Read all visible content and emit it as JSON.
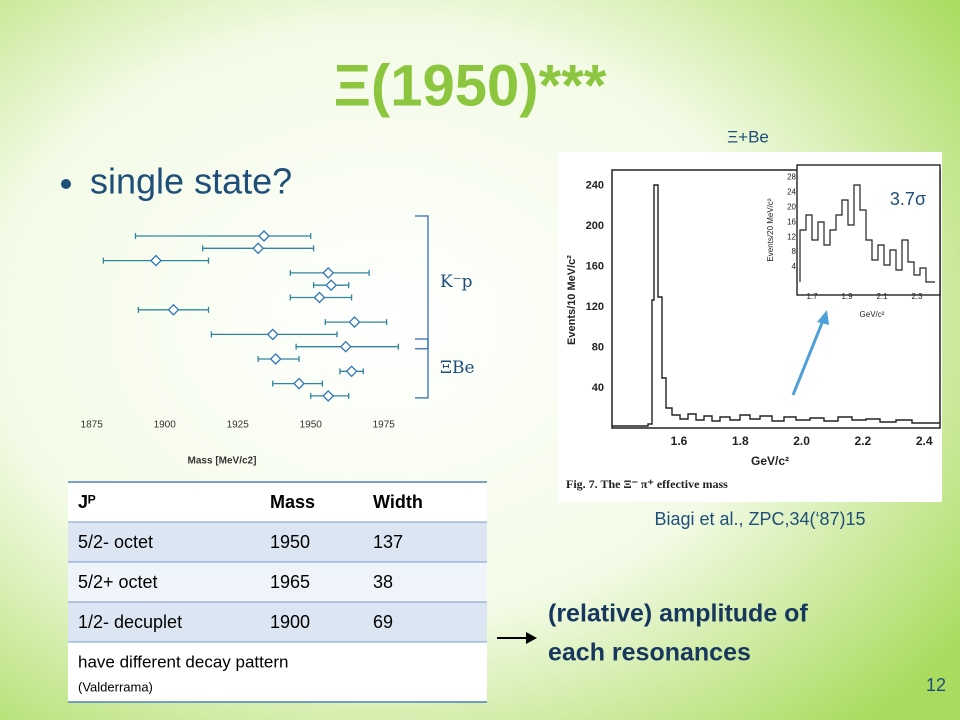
{
  "title": "Ξ(1950)***",
  "bullet": "single state?",
  "chart_data": {
    "type": "errorbar",
    "x_label": "Mass [MeV/c2]",
    "xlim": [
      1871,
      1984
    ],
    "xticks": [
      1875,
      1900,
      1925,
      1950,
      1975
    ],
    "color": "#31859c",
    "series": [
      {
        "name": "K⁻p",
        "points": [
          {
            "value": 1934,
            "low": 1890,
            "high": 1950
          },
          {
            "value": 1932,
            "low": 1913,
            "high": 1951
          },
          {
            "value": 1897,
            "low": 1879,
            "high": 1915
          },
          {
            "value": 1956,
            "low": 1943,
            "high": 1970
          },
          {
            "value": 1957,
            "low": 1951,
            "high": 1963
          },
          {
            "value": 1953,
            "low": 1943,
            "high": 1964
          },
          {
            "value": 1903,
            "low": 1891,
            "high": 1915
          },
          {
            "value": 1965,
            "low": 1955,
            "high": 1976
          },
          {
            "value": 1937,
            "low": 1916,
            "high": 1959
          },
          {
            "value": 1962,
            "low": 1945,
            "high": 1980
          }
        ]
      },
      {
        "name": "ΞBe",
        "points": [
          {
            "value": 1938,
            "low": 1932,
            "high": 1946
          },
          {
            "value": 1964,
            "low": 1960,
            "high": 1968
          },
          {
            "value": 1946,
            "low": 1937,
            "high": 1954
          },
          {
            "value": 1956,
            "low": 1950,
            "high": 1963
          }
        ]
      }
    ]
  },
  "table": {
    "header": [
      "Jᴾ",
      "Mass",
      "Width"
    ],
    "rows": [
      [
        "5/2- octet",
        "1950",
        "137"
      ],
      [
        "5/2+ octet",
        "1965",
        "38"
      ],
      [
        "1/2- decuplet",
        "1900",
        "69"
      ]
    ],
    "note": "have different decay pattern",
    "note_source": "(Valderrama)"
  },
  "figure": {
    "label": "Ξ+Be",
    "significance": "3.7σ",
    "y_label": "Events/10 MeV/c²",
    "x_label": "GeV/c²",
    "xticks": [
      "1.6",
      "1.8",
      "2.0",
      "2.2",
      "2.4"
    ],
    "yticks": [
      "40",
      "80",
      "120",
      "160",
      "200",
      "240"
    ],
    "inset": {
      "y_label": "Events/20 MeV/c²",
      "x_label": "GeV/c²",
      "xticks": [
        "1.7",
        "1.9",
        "2.1",
        "2.3"
      ],
      "yticks": [
        "4",
        "8",
        "12",
        "16",
        "20",
        "24",
        "28"
      ]
    },
    "caption": "Fig. 7. The Ξ⁻ π⁺ effective mass",
    "citation": "Biagi et al., ZPC,34(‘87)15"
  },
  "callout": [
    "(relative) amplitude of",
    "each resonances"
  ],
  "page_number": "12"
}
